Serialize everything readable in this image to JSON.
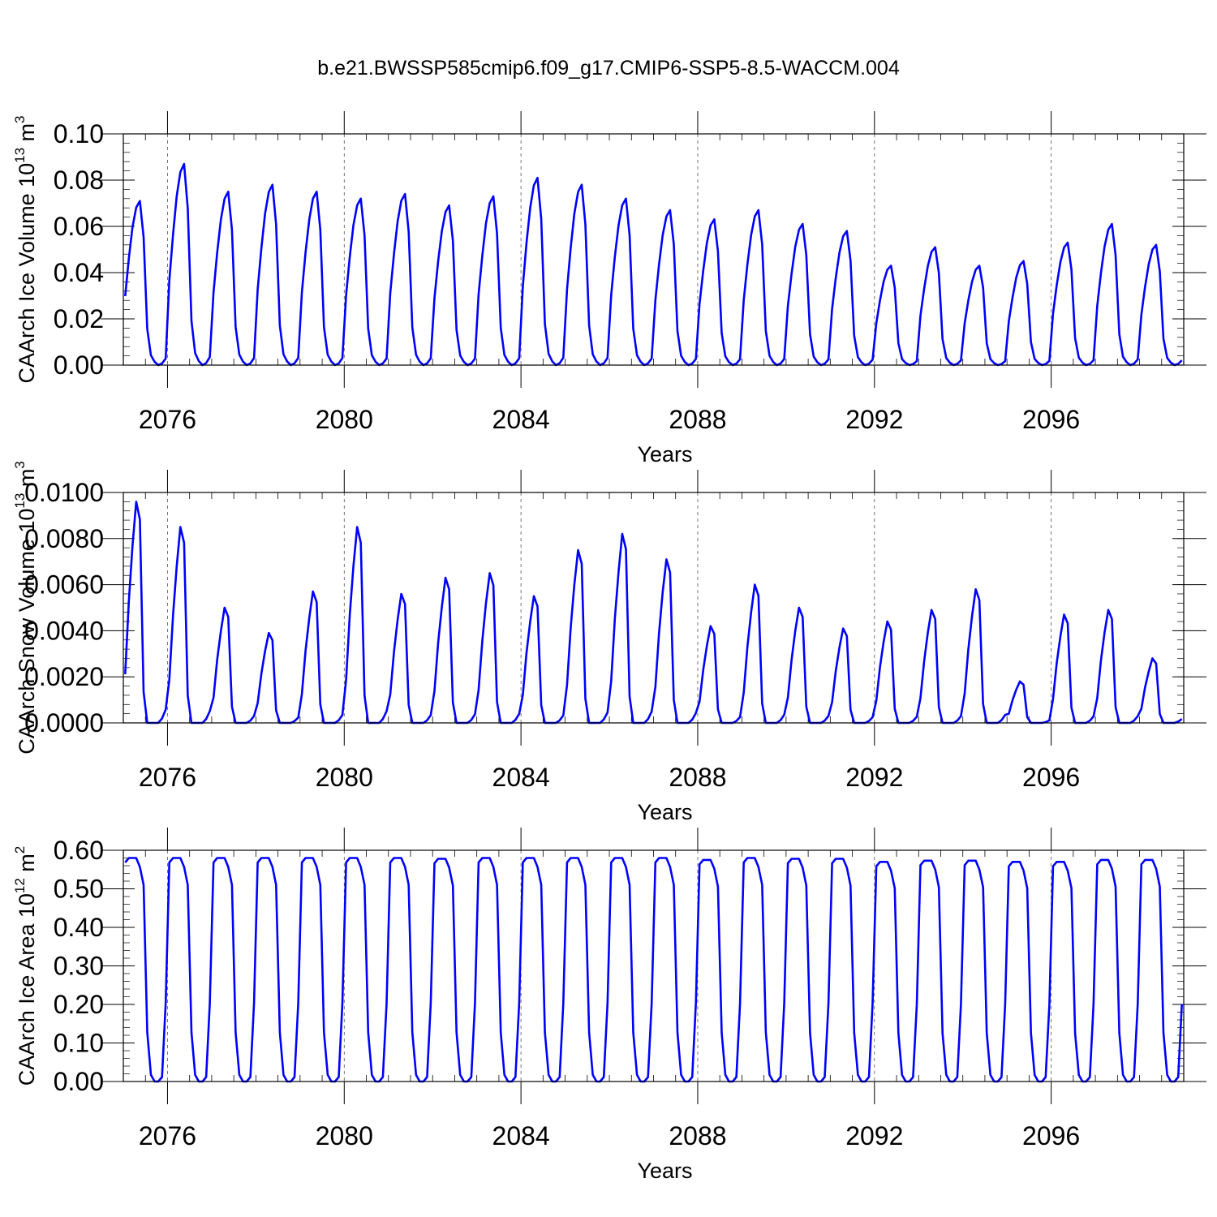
{
  "title": "b.e21.BWSSP585cmip6.f09_g17.CMIP6-SSP5-8.5-WACCM.004",
  "line_color": "#0000ff",
  "chart_data": [
    {
      "type": "line",
      "ylabel_main": "CAArch Ice Volume 10",
      "ylabel_exp": "13",
      "ylabel_unit": "m",
      "ylabel_unit_exp": "3",
      "xlabel": "Years",
      "xlim": [
        2075.0,
        2099.0
      ],
      "ylim": [
        0.0,
        0.1
      ],
      "yticks": [
        0.0,
        0.02,
        0.04,
        0.06,
        0.08,
        0.1
      ],
      "ytick_labels": [
        "0.00",
        "0.02",
        "0.04",
        "0.06",
        "0.08",
        "0.10"
      ],
      "xticks": [
        2076,
        2080,
        2084,
        2088,
        2092,
        2096
      ],
      "xtick_labels": [
        "2076",
        "2080",
        "2084",
        "2088",
        "2092",
        "2096"
      ],
      "grid": "dashed vertical at major x ticks",
      "series": [
        {
          "peaks": [
            0.071,
            0.087,
            0.075,
            0.078,
            0.075,
            0.072,
            0.074,
            0.069,
            0.073,
            0.081,
            0.078,
            0.072,
            0.067,
            0.063,
            0.067,
            0.061,
            0.058,
            0.043,
            0.051,
            0.043,
            0.045,
            0.053,
            0.061,
            0.052
          ]
        }
      ]
    },
    {
      "type": "line",
      "ylabel_main": "CAArch Snow Volume 10",
      "ylabel_exp": "13",
      "ylabel_unit": "m",
      "ylabel_unit_exp": "3",
      "xlabel": "Years",
      "xlim": [
        2075.0,
        2099.0
      ],
      "ylim": [
        0.0,
        0.01
      ],
      "yticks": [
        0.0,
        0.002,
        0.004,
        0.006,
        0.008,
        0.01
      ],
      "ytick_labels": [
        "0.0000",
        "0.0020",
        "0.0040",
        "0.0060",
        "0.0080",
        "0.0100"
      ],
      "xticks": [
        2076,
        2080,
        2084,
        2088,
        2092,
        2096
      ],
      "xtick_labels": [
        "2076",
        "2080",
        "2084",
        "2088",
        "2092",
        "2096"
      ],
      "grid": "dashed vertical at major x ticks",
      "series": [
        {
          "peaks": [
            0.0096,
            0.0085,
            0.005,
            0.0039,
            0.0057,
            0.0085,
            0.0056,
            0.0063,
            0.0065,
            0.0055,
            0.0075,
            0.0082,
            0.0071,
            0.0042,
            0.006,
            0.005,
            0.0041,
            0.0044,
            0.0049,
            0.0058,
            0.0018,
            0.0047,
            0.0049,
            0.0028
          ]
        }
      ]
    },
    {
      "type": "line",
      "ylabel_main": "CAArch Ice Area 10",
      "ylabel_exp": "12",
      "ylabel_unit": "m",
      "ylabel_unit_exp": "2",
      "xlabel": "Years",
      "xlim": [
        2075.0,
        2099.0
      ],
      "ylim": [
        0.0,
        0.6
      ],
      "yticks": [
        0.0,
        0.1,
        0.2,
        0.3,
        0.4,
        0.5,
        0.6
      ],
      "ytick_labels": [
        "0.00",
        "0.10",
        "0.20",
        "0.30",
        "0.40",
        "0.50",
        "0.60"
      ],
      "xticks": [
        2076,
        2080,
        2084,
        2088,
        2092,
        2096
      ],
      "xtick_labels": [
        "2076",
        "2080",
        "2084",
        "2088",
        "2092",
        "2096"
      ],
      "grid": "dashed vertical at major x ticks",
      "series": [
        {
          "peaks": [
            0.58,
            0.58,
            0.58,
            0.58,
            0.58,
            0.58,
            0.58,
            0.578,
            0.58,
            0.58,
            0.58,
            0.58,
            0.58,
            0.575,
            0.58,
            0.578,
            0.578,
            0.57,
            0.573,
            0.573,
            0.57,
            0.57,
            0.575,
            0.575
          ]
        }
      ]
    }
  ]
}
